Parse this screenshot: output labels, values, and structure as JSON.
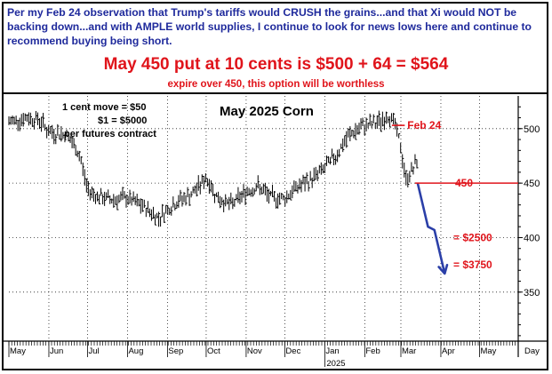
{
  "header": {
    "observation": "Per my Feb 24 observation that Trump's tariffs would CRUSH the grains...and that Xi would NOT be backing down...and with AMPLE world supplies, I continue to look for news lows here and continue to recommend buying being short.",
    "headline": "May 450 put at 10 cents is $500 + 64 = $564",
    "subline": "expire over 450, this option will be worthless"
  },
  "chart_data": {
    "type": "bar",
    "subtype": "ohlc",
    "title": "May 2025 Corn",
    "info_lines": [
      "1 cent move = $50",
      "$1 = $5000",
      "per futures contract"
    ],
    "ylim": [
      305,
      530
    ],
    "y_ticks": [
      350,
      400,
      450,
      500
    ],
    "x_labels": [
      "May",
      "Jun",
      "Jul",
      "Aug",
      "Sep",
      "Oct",
      "Nov",
      "Dec",
      "Jan",
      "Feb",
      "Mar",
      "Apr",
      "May",
      "Day"
    ],
    "year_label": "2025",
    "grid": "dotted",
    "price_series": [
      [
        "2024-05-01",
        506
      ],
      [
        "2024-05-15",
        510
      ],
      [
        "2024-05-25",
        508
      ],
      [
        "2024-06-01",
        497
      ],
      [
        "2024-06-15",
        494
      ],
      [
        "2024-06-25",
        475
      ],
      [
        "2024-07-01",
        444
      ],
      [
        "2024-07-10",
        437
      ],
      [
        "2024-07-20",
        435
      ],
      [
        "2024-08-01",
        436
      ],
      [
        "2024-08-15",
        427
      ],
      [
        "2024-08-25",
        418
      ],
      [
        "2024-09-01",
        426
      ],
      [
        "2024-09-10",
        434
      ],
      [
        "2024-09-20",
        440
      ],
      [
        "2024-10-01",
        455
      ],
      [
        "2024-10-10",
        436
      ],
      [
        "2024-10-20",
        430
      ],
      [
        "2024-11-01",
        442
      ],
      [
        "2024-11-10",
        447
      ],
      [
        "2024-11-20",
        437
      ],
      [
        "2024-12-01",
        436
      ],
      [
        "2024-12-10",
        446
      ],
      [
        "2024-12-20",
        452
      ],
      [
        "2025-01-01",
        464
      ],
      [
        "2025-01-10",
        476
      ],
      [
        "2025-01-20",
        494
      ],
      [
        "2025-02-01",
        503
      ],
      [
        "2025-02-10",
        505
      ],
      [
        "2025-02-20",
        512
      ],
      [
        "2025-02-24",
        505
      ],
      [
        "2025-02-28",
        488
      ],
      [
        "2025-03-05",
        453
      ],
      [
        "2025-03-10",
        463
      ],
      [
        "2025-03-14",
        470
      ]
    ],
    "annotations": [
      {
        "text": "Feb 24",
        "y": 503,
        "color": "#e0141b"
      },
      {
        "text": "450",
        "y": 450,
        "color": "#e0141b"
      },
      {
        "text": "= $2500",
        "y": 400,
        "color": "#e0141b"
      },
      {
        "text": "= $3750",
        "y": 375,
        "color": "#e0141b"
      }
    ],
    "projection": {
      "color": "#2b3fa8",
      "points": [
        [
          "2025-03-14",
          450
        ],
        [
          "2025-03-22",
          410
        ],
        [
          "2025-03-27",
          407
        ],
        [
          "2025-04-04",
          367
        ]
      ]
    }
  }
}
